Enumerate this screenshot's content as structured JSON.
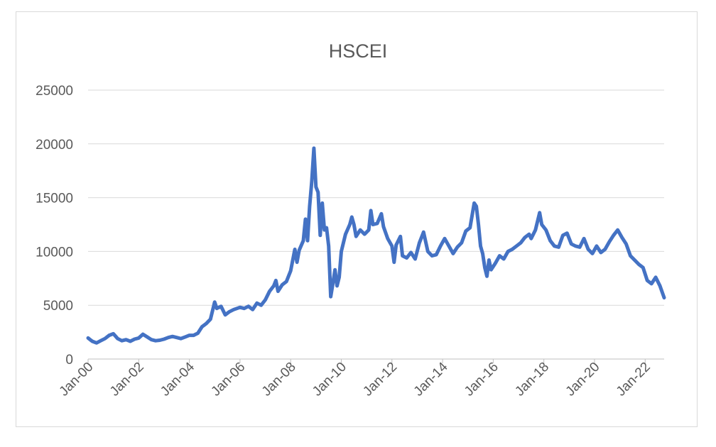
{
  "colors": {
    "series": "#4472c4"
  },
  "chart_data": {
    "type": "line",
    "title": "HSCEI",
    "xlabel": "",
    "ylabel": "",
    "ylim": [
      0,
      25000
    ],
    "yticks": [
      0,
      5000,
      10000,
      15000,
      20000,
      25000
    ],
    "xlim": [
      "2000-01",
      "2022-10"
    ],
    "xticks": [
      {
        "label": "Jan-00",
        "date": "2000-01"
      },
      {
        "label": "Jan-02",
        "date": "2002-01"
      },
      {
        "label": "Jan-04",
        "date": "2004-01"
      },
      {
        "label": "Jan-06",
        "date": "2006-01"
      },
      {
        "label": "Jan-08",
        "date": "2008-01"
      },
      {
        "label": "Jan-10",
        "date": "2010-01"
      },
      {
        "label": "Jan-12",
        "date": "2012-01"
      },
      {
        "label": "Jan-14",
        "date": "2014-01"
      },
      {
        "label": "Jan-16",
        "date": "2016-01"
      },
      {
        "label": "Jan-18",
        "date": "2018-01"
      },
      {
        "label": "Jan-20",
        "date": "2020-01"
      },
      {
        "label": "Jan-22",
        "date": "2022-01"
      }
    ],
    "grid": true,
    "legend": "none",
    "series": [
      {
        "name": "",
        "points": [
          [
            "2000-01",
            1950
          ],
          [
            "2000-03",
            1650
          ],
          [
            "2000-05",
            1500
          ],
          [
            "2000-07",
            1700
          ],
          [
            "2000-09",
            1900
          ],
          [
            "2000-11",
            2200
          ],
          [
            "2001-01",
            2350
          ],
          [
            "2001-03",
            1900
          ],
          [
            "2001-05",
            1700
          ],
          [
            "2001-07",
            1800
          ],
          [
            "2001-09",
            1650
          ],
          [
            "2001-11",
            1850
          ],
          [
            "2002-01",
            1950
          ],
          [
            "2002-03",
            2300
          ],
          [
            "2002-05",
            2050
          ],
          [
            "2002-07",
            1800
          ],
          [
            "2002-09",
            1700
          ],
          [
            "2002-11",
            1750
          ],
          [
            "2003-01",
            1850
          ],
          [
            "2003-03",
            2000
          ],
          [
            "2003-05",
            2100
          ],
          [
            "2003-07",
            2000
          ],
          [
            "2003-09",
            1900
          ],
          [
            "2003-11",
            2050
          ],
          [
            "2004-01",
            2200
          ],
          [
            "2004-03",
            2200
          ],
          [
            "2004-05",
            2400
          ],
          [
            "2004-07",
            3000
          ],
          [
            "2004-09",
            3300
          ],
          [
            "2004-11",
            3700
          ],
          [
            "2005-01",
            5300
          ],
          [
            "2005-02",
            4700
          ],
          [
            "2005-04",
            4900
          ],
          [
            "2005-06",
            4100
          ],
          [
            "2005-08",
            4400
          ],
          [
            "2005-10",
            4600
          ],
          [
            "2006-01",
            4800
          ],
          [
            "2006-03",
            4700
          ],
          [
            "2006-05",
            4900
          ],
          [
            "2006-07",
            4600
          ],
          [
            "2006-09",
            5200
          ],
          [
            "2006-11",
            5000
          ],
          [
            "2007-01",
            5500
          ],
          [
            "2007-03",
            6300
          ],
          [
            "2007-05",
            6800
          ],
          [
            "2007-06",
            7300
          ],
          [
            "2007-07",
            6300
          ],
          [
            "2007-09",
            6900
          ],
          [
            "2007-11",
            7200
          ],
          [
            "2008-01",
            8200
          ],
          [
            "2008-03",
            10200
          ],
          [
            "2008-04",
            9000
          ],
          [
            "2008-05",
            10100
          ],
          [
            "2008-07",
            11000
          ],
          [
            "2008-08",
            13000
          ],
          [
            "2008-09",
            11000
          ],
          [
            "2008-10",
            14200
          ],
          [
            "2008-11",
            16500
          ],
          [
            "2008-12",
            19600
          ],
          [
            "2009-01",
            16000
          ],
          [
            "2009-02",
            15500
          ],
          [
            "2009-03",
            11500
          ],
          [
            "2009-04",
            14500
          ],
          [
            "2009-05",
            12000
          ],
          [
            "2009-06",
            12200
          ],
          [
            "2009-07",
            10500
          ],
          [
            "2009-08",
            5800
          ],
          [
            "2009-09",
            7000
          ],
          [
            "2009-10",
            8300
          ],
          [
            "2009-11",
            6800
          ],
          [
            "2009-12",
            7600
          ],
          [
            "2010-01",
            10000
          ],
          [
            "2010-03",
            11600
          ],
          [
            "2010-05",
            12500
          ],
          [
            "2010-06",
            13200
          ],
          [
            "2010-07",
            12500
          ],
          [
            "2010-08",
            11400
          ],
          [
            "2010-10",
            12000
          ],
          [
            "2010-12",
            11600
          ],
          [
            "2011-02",
            12000
          ],
          [
            "2011-03",
            13800
          ],
          [
            "2011-04",
            12500
          ],
          [
            "2011-06",
            12600
          ],
          [
            "2011-08",
            13500
          ],
          [
            "2011-09",
            12300
          ],
          [
            "2011-11",
            11200
          ],
          [
            "2012-01",
            10500
          ],
          [
            "2012-02",
            9000
          ],
          [
            "2012-03",
            10600
          ],
          [
            "2012-05",
            11400
          ],
          [
            "2012-06",
            9600
          ],
          [
            "2012-08",
            9400
          ],
          [
            "2012-10",
            9900
          ],
          [
            "2012-12",
            9300
          ],
          [
            "2013-02",
            10800
          ],
          [
            "2013-04",
            11800
          ],
          [
            "2013-06",
            10000
          ],
          [
            "2013-08",
            9600
          ],
          [
            "2013-10",
            9700
          ],
          [
            "2013-12",
            10500
          ],
          [
            "2014-02",
            11200
          ],
          [
            "2014-04",
            10500
          ],
          [
            "2014-06",
            9800
          ],
          [
            "2014-08",
            10400
          ],
          [
            "2014-10",
            10800
          ],
          [
            "2014-12",
            11900
          ],
          [
            "2015-02",
            12200
          ],
          [
            "2015-04",
            14500
          ],
          [
            "2015-05",
            14200
          ],
          [
            "2015-06",
            12500
          ],
          [
            "2015-07",
            10500
          ],
          [
            "2015-08",
            9800
          ],
          [
            "2015-09",
            8500
          ],
          [
            "2015-10",
            7700
          ],
          [
            "2015-11",
            9200
          ],
          [
            "2015-12",
            8300
          ],
          [
            "2016-02",
            8900
          ],
          [
            "2016-04",
            9600
          ],
          [
            "2016-06",
            9300
          ],
          [
            "2016-08",
            10000
          ],
          [
            "2016-10",
            10200
          ],
          [
            "2016-12",
            10500
          ],
          [
            "2017-02",
            10800
          ],
          [
            "2017-04",
            11300
          ],
          [
            "2017-06",
            11600
          ],
          [
            "2017-07",
            11200
          ],
          [
            "2017-09",
            12000
          ],
          [
            "2017-11",
            13600
          ],
          [
            "2017-12",
            12500
          ],
          [
            "2018-02",
            12000
          ],
          [
            "2018-04",
            11000
          ],
          [
            "2018-06",
            10500
          ],
          [
            "2018-08",
            10400
          ],
          [
            "2018-10",
            11500
          ],
          [
            "2018-12",
            11700
          ],
          [
            "2019-02",
            10700
          ],
          [
            "2019-04",
            10500
          ],
          [
            "2019-06",
            10400
          ],
          [
            "2019-08",
            11200
          ],
          [
            "2019-10",
            10200
          ],
          [
            "2019-12",
            9800
          ],
          [
            "2020-02",
            10500
          ],
          [
            "2020-04",
            9900
          ],
          [
            "2020-06",
            10200
          ],
          [
            "2020-08",
            10900
          ],
          [
            "2020-10",
            11500
          ],
          [
            "2020-12",
            12000
          ],
          [
            "2021-02",
            11300
          ],
          [
            "2021-04",
            10700
          ],
          [
            "2021-06",
            9600
          ],
          [
            "2021-08",
            9200
          ],
          [
            "2021-10",
            8800
          ],
          [
            "2021-12",
            8500
          ],
          [
            "2022-02",
            7300
          ],
          [
            "2022-04",
            7000
          ],
          [
            "2022-06",
            7600
          ],
          [
            "2022-08",
            6800
          ],
          [
            "2022-10",
            5700
          ]
        ]
      }
    ]
  }
}
